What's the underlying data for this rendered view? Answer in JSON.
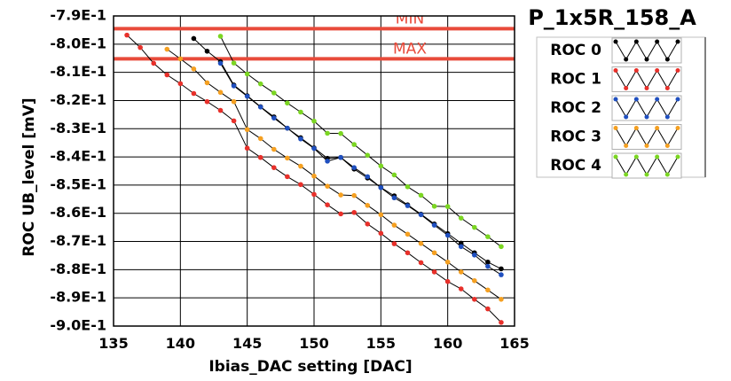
{
  "chart_data": {
    "type": "line",
    "title": "P_1x5R_158_A",
    "xlabel": "Ibias_DAC setting [DAC]",
    "ylabel": "ROC UB_level [mV]",
    "xlim": [
      135,
      165
    ],
    "ylim": [
      -0.9,
      -0.79
    ],
    "x_ticks": [
      135,
      140,
      145,
      150,
      155,
      160,
      165
    ],
    "y_ticks": [
      -0.79,
      -0.8,
      -0.81,
      -0.82,
      -0.83,
      -0.84,
      -0.85,
      -0.86,
      -0.87,
      -0.88,
      -0.89,
      -0.9
    ],
    "x_tick_labels": [
      "135",
      "140",
      "145",
      "150",
      "155",
      "160",
      "165"
    ],
    "y_tick_labels": [
      "-7.9E-1",
      "-8.0E-1",
      "-8.1E-1",
      "-8.2E-1",
      "-8.3E-1",
      "-8.4E-1",
      "-8.5E-1",
      "-8.6E-1",
      "-8.7E-1",
      "-8.8E-1",
      "-8.9E-1",
      "-9.0E-1"
    ],
    "grid": true,
    "legend_position": "right",
    "reference_lines": [
      {
        "label": "MIN",
        "y": -0.7945,
        "color": "#e84a3a"
      },
      {
        "label": "MAX",
        "y": -0.8052,
        "color": "#e84a3a"
      }
    ],
    "series": [
      {
        "name": "ROC 0",
        "color": "#000000",
        "x": [
          141,
          142,
          143,
          144,
          145,
          146,
          147,
          148,
          149,
          150,
          151,
          152,
          153,
          154,
          155,
          156,
          157,
          158,
          159,
          160,
          161,
          162,
          163,
          164
        ],
        "y": [
          -0.798,
          -0.8025,
          -0.8062,
          -0.8145,
          -0.8183,
          -0.8222,
          -0.8258,
          -0.8298,
          -0.8332,
          -0.8368,
          -0.8405,
          -0.8402,
          -0.8443,
          -0.8475,
          -0.8508,
          -0.8538,
          -0.857,
          -0.8603,
          -0.8638,
          -0.8672,
          -0.8706,
          -0.874,
          -0.8773,
          -0.8797
        ]
      },
      {
        "name": "ROC 1",
        "color": "#e8302a",
        "x": [
          136,
          137,
          138,
          139,
          140,
          141,
          142,
          143,
          144,
          145,
          146,
          147,
          148,
          149,
          150,
          151,
          152,
          153,
          154,
          155,
          156,
          157,
          158,
          159,
          160,
          161,
          162,
          163,
          164
        ],
        "y": [
          -0.7968,
          -0.8012,
          -0.8068,
          -0.8109,
          -0.814,
          -0.8175,
          -0.8204,
          -0.8235,
          -0.8272,
          -0.8369,
          -0.8402,
          -0.8438,
          -0.847,
          -0.8498,
          -0.8533,
          -0.857,
          -0.8602,
          -0.8597,
          -0.8638,
          -0.8671,
          -0.8708,
          -0.874,
          -0.8775,
          -0.8808,
          -0.8842,
          -0.8868,
          -0.8905,
          -0.8939,
          -0.8987
        ]
      },
      {
        "name": "ROC 2",
        "color": "#1f4fbf",
        "x": [
          143,
          144,
          145,
          146,
          147,
          148,
          149,
          150,
          151,
          152,
          153,
          154,
          155,
          156,
          157,
          158,
          159,
          160,
          161,
          162,
          163,
          164
        ],
        "y": [
          -0.8068,
          -0.8148,
          -0.8185,
          -0.8223,
          -0.8262,
          -0.8298,
          -0.8336,
          -0.837,
          -0.8415,
          -0.8402,
          -0.8438,
          -0.847,
          -0.8509,
          -0.8545,
          -0.8573,
          -0.8605,
          -0.8642,
          -0.8678,
          -0.8718,
          -0.8748,
          -0.8788,
          -0.8818
        ]
      },
      {
        "name": "ROC 3",
        "color": "#f5a021",
        "x": [
          139,
          140,
          141,
          142,
          143,
          144,
          145,
          146,
          147,
          148,
          149,
          150,
          151,
          152,
          153,
          154,
          155,
          156,
          157,
          158,
          159,
          160,
          161,
          162,
          163,
          164
        ],
        "y": [
          -0.8018,
          -0.8052,
          -0.8088,
          -0.8137,
          -0.8171,
          -0.8204,
          -0.8303,
          -0.8335,
          -0.8373,
          -0.8404,
          -0.8433,
          -0.8468,
          -0.8504,
          -0.8535,
          -0.8537,
          -0.8572,
          -0.8605,
          -0.8642,
          -0.8674,
          -0.8707,
          -0.874,
          -0.8773,
          -0.8808,
          -0.8839,
          -0.8872,
          -0.8905
        ]
      },
      {
        "name": "ROC 4",
        "color": "#7bd622",
        "x": [
          143,
          144,
          145,
          146,
          147,
          148,
          149,
          150,
          151,
          152,
          153,
          154,
          155,
          156,
          157,
          158,
          159,
          160,
          161,
          162,
          163,
          164
        ],
        "y": [
          -0.7972,
          -0.8067,
          -0.8106,
          -0.8141,
          -0.8173,
          -0.8209,
          -0.8241,
          -0.8273,
          -0.8316,
          -0.8317,
          -0.8356,
          -0.8394,
          -0.8432,
          -0.8464,
          -0.8506,
          -0.8536,
          -0.8575,
          -0.8576,
          -0.8617,
          -0.865,
          -0.8683,
          -0.8718
        ]
      }
    ]
  }
}
